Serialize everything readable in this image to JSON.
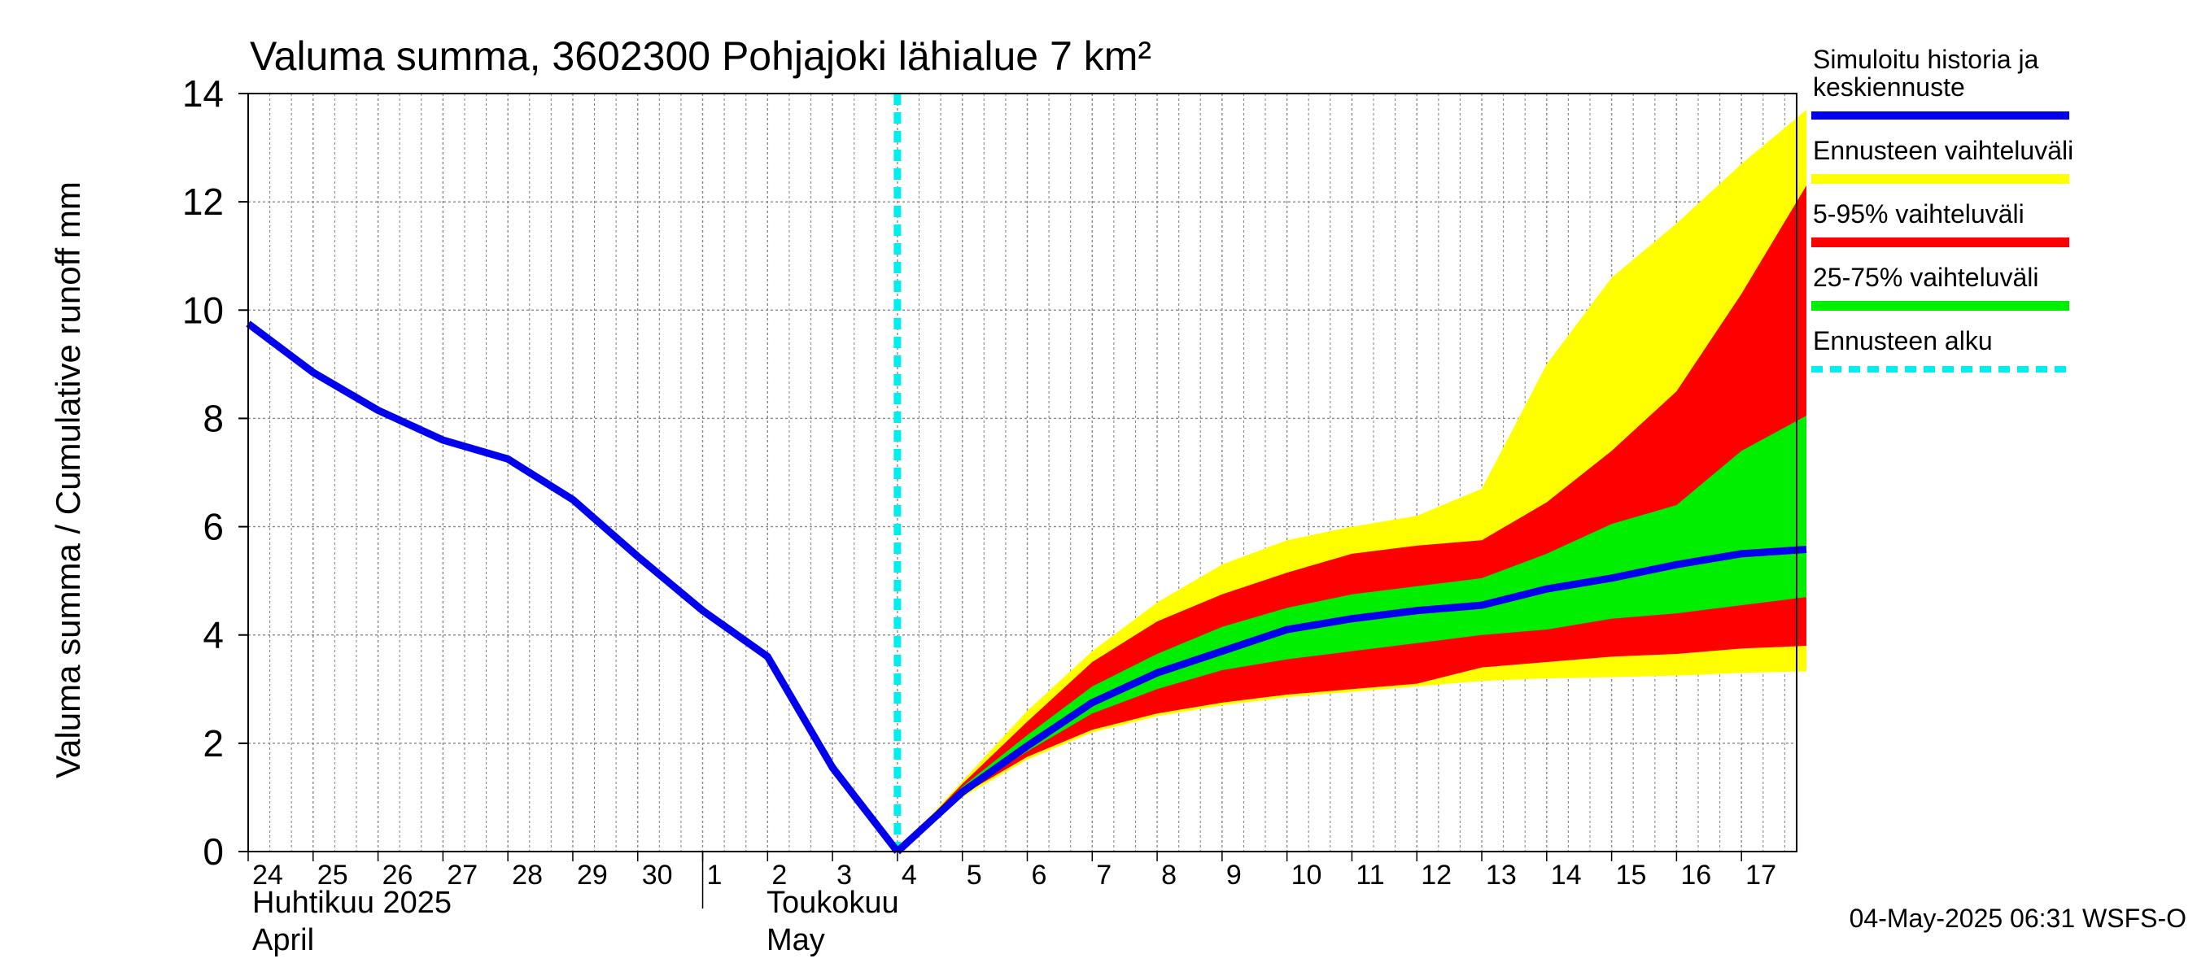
{
  "chart_data": {
    "type": "area",
    "title": "Valuma summa, 3602300 Pohjajoki lähialue 7 km²",
    "ylabel": "Valuma summa / Cumulative runoff    mm",
    "ylim": [
      0,
      14
    ],
    "yticks": [
      0,
      2,
      4,
      6,
      8,
      10,
      12,
      14
    ],
    "x_days": [
      "24",
      "25",
      "26",
      "27",
      "28",
      "29",
      "30",
      "1",
      "2",
      "3",
      "4",
      "5",
      "6",
      "7",
      "8",
      "9",
      "10",
      "11",
      "12",
      "13",
      "14",
      "15",
      "16",
      "17"
    ],
    "month_labels": [
      {
        "line1": "Huhtikuu  2025",
        "line2": "April"
      },
      {
        "line1": "Toukokuu",
        "line2": "May"
      }
    ],
    "forecast_start_day_index": 10,
    "history": {
      "name": "Simuloitu historia ja keskiennuste",
      "color": "#0000ee",
      "x": [
        0,
        1,
        2,
        3,
        4,
        5,
        6,
        7,
        8,
        9,
        10
      ],
      "y": [
        9.75,
        8.85,
        8.15,
        7.6,
        7.25,
        6.5,
        5.45,
        4.45,
        3.6,
        1.55,
        0.0
      ]
    },
    "forecast_median": {
      "x": [
        10,
        11,
        12,
        13,
        14,
        15,
        16,
        17,
        18,
        19,
        20,
        21,
        22,
        23,
        24
      ],
      "y": [
        0.0,
        1.1,
        1.95,
        2.75,
        3.3,
        3.7,
        4.1,
        4.3,
        4.45,
        4.55,
        4.85,
        5.05,
        5.3,
        5.5,
        5.58
      ]
    },
    "bands": [
      {
        "name": "Ennusteen vaihteluväli",
        "color": "#ffff00",
        "x": [
          10,
          11,
          12,
          13,
          14,
          15,
          16,
          17,
          18,
          19,
          20,
          21,
          22,
          23,
          24
        ],
        "lower": [
          0.0,
          1.0,
          1.7,
          2.2,
          2.5,
          2.7,
          2.85,
          2.95,
          3.05,
          3.15,
          3.2,
          3.22,
          3.25,
          3.3,
          3.33
        ],
        "upper": [
          0.0,
          1.3,
          2.6,
          3.7,
          4.6,
          5.3,
          5.75,
          6.0,
          6.2,
          6.7,
          9.0,
          10.6,
          11.6,
          12.7,
          13.7
        ]
      },
      {
        "name": "5-95% vaihteluväli",
        "color": "#ff0000",
        "x": [
          10,
          11,
          12,
          13,
          14,
          15,
          16,
          17,
          18,
          19,
          20,
          21,
          22,
          23,
          24
        ],
        "lower": [
          0.0,
          1.05,
          1.75,
          2.25,
          2.55,
          2.75,
          2.9,
          3.0,
          3.1,
          3.4,
          3.5,
          3.6,
          3.65,
          3.75,
          3.8
        ],
        "upper": [
          0.0,
          1.25,
          2.4,
          3.5,
          4.25,
          4.75,
          5.15,
          5.5,
          5.65,
          5.75,
          6.45,
          7.4,
          8.5,
          10.3,
          12.3
        ]
      },
      {
        "name": "25-75% vaihteluväli",
        "color": "#00ee00",
        "x": [
          10,
          11,
          12,
          13,
          14,
          15,
          16,
          17,
          18,
          19,
          20,
          21,
          22,
          23,
          24
        ],
        "lower": [
          0.0,
          1.1,
          1.85,
          2.55,
          3.0,
          3.35,
          3.55,
          3.7,
          3.85,
          4.0,
          4.1,
          4.3,
          4.4,
          4.55,
          4.7
        ],
        "upper": [
          0.0,
          1.2,
          2.15,
          3.05,
          3.65,
          4.15,
          4.5,
          4.75,
          4.9,
          5.05,
          5.5,
          6.05,
          6.4,
          7.4,
          8.05
        ]
      }
    ],
    "legend": [
      {
        "label": "Simuloitu historia ja keskiennuste",
        "line1": "Simuloitu historia ja",
        "line2": "keskiennuste",
        "color": "#0000ee",
        "style": "solid"
      },
      {
        "label": "Ennusteen vaihteluväli",
        "color": "#ffff00",
        "style": "solid"
      },
      {
        "label": "5-95% vaihteluväli",
        "color": "#ff0000",
        "style": "solid"
      },
      {
        "label": "25-75% vaihteluväli",
        "color": "#00ee00",
        "style": "solid"
      },
      {
        "label": "Ennusteen alku",
        "color": "#00eeee",
        "style": "dashed"
      }
    ],
    "footer": "04-May-2025 06:31 WSFS-O"
  }
}
